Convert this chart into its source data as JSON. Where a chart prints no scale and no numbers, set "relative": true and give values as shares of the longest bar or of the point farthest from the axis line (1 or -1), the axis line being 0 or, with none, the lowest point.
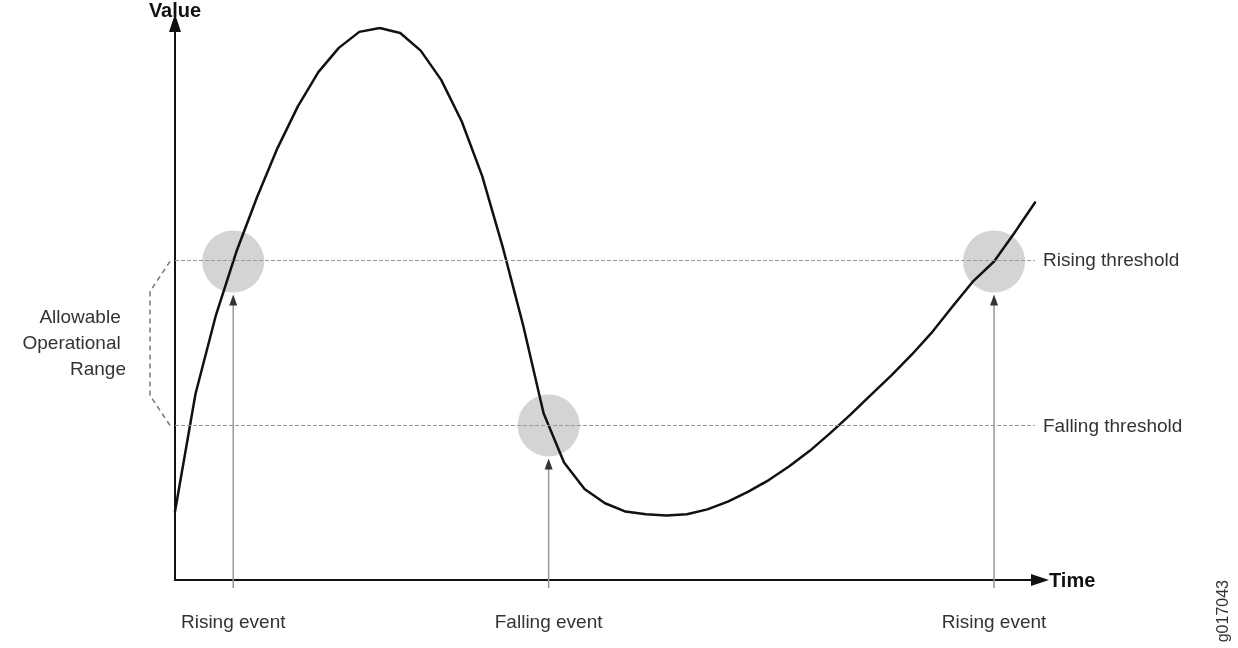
{
  "chart_data": {
    "type": "line",
    "relative": true,
    "xlabel": "Time",
    "ylabel": "Value",
    "categories": [
      null,
      null,
      null,
      null,
      null,
      null,
      null,
      null,
      null,
      null,
      null,
      null,
      null,
      null,
      null,
      null,
      null,
      null,
      null,
      null,
      null,
      null,
      null,
      null,
      null,
      null,
      null,
      null,
      null,
      null,
      null,
      null,
      null,
      null,
      null,
      null,
      null,
      null,
      null,
      null,
      null,
      null,
      null
    ],
    "series": [
      {
        "color": "#111111",
        "values": [
          0.124,
          0.337,
          0.48,
          0.595,
          0.693,
          0.782,
          0.858,
          0.92,
          0.964,
          0.993,
          1.0,
          0.991,
          0.959,
          0.906,
          0.831,
          0.732,
          0.604,
          0.462,
          0.302,
          0.213,
          0.165,
          0.139,
          0.124,
          0.119,
          0.117,
          0.119,
          0.128,
          0.142,
          0.16,
          0.181,
          0.206,
          0.234,
          0.266,
          0.3,
          0.336,
          0.371,
          0.409,
          0.45,
          0.497,
          0.542,
          0.577,
          0.629,
          0.684
        ]
      }
    ],
    "marker": "none",
    "ref_lines": [
      {
        "axis": "y",
        "value": 0.577,
        "label": "Rising threshold",
        "color": "#999999",
        "line_style": "dashed"
      },
      {
        "axis": "y",
        "value": 0.28,
        "label": "Falling threshold",
        "color": "#999999",
        "line_style": "dashed"
      }
    ],
    "annotations": [
      "Allowable Operational Range",
      "Rising event",
      "Falling event",
      "Rising event",
      "g017043"
    ]
  }
}
